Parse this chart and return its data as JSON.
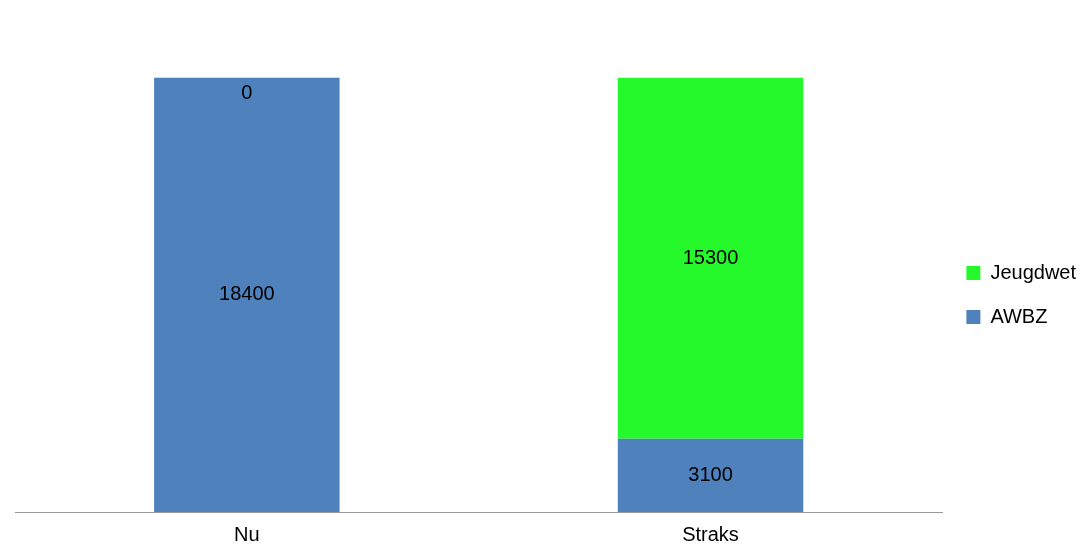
{
  "chart_data": {
    "type": "bar",
    "stacked": true,
    "categories": [
      "Nu",
      "Straks"
    ],
    "series": [
      {
        "name": "AWBZ",
        "color": "#4f81bd",
        "values": [
          18400,
          3100
        ]
      },
      {
        "name": "Jeugdwet",
        "color": "#26f92b",
        "values": [
          0,
          15300
        ]
      }
    ],
    "data_labels": true,
    "legend": "right",
    "grid": false,
    "tick_labels": "x"
  }
}
